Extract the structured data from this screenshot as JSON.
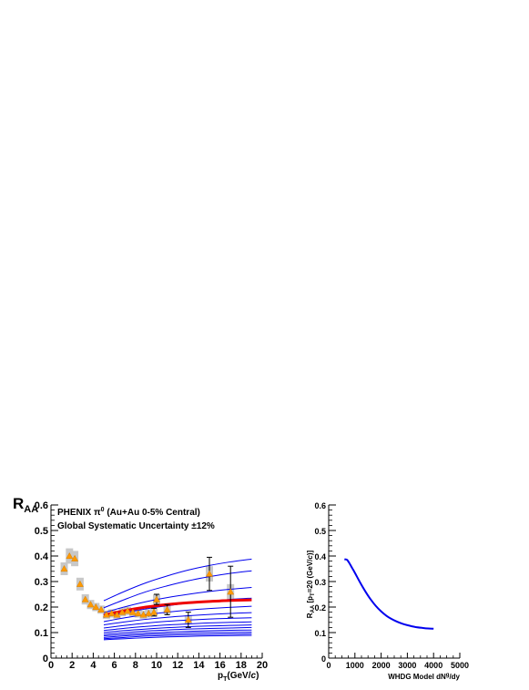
{
  "chart_data": [
    {
      "type": "scatter",
      "title": "",
      "ylabel_main": "R",
      "ylabel_sub": "AA",
      "xlabel_main": "p",
      "xlabel_sub": "T",
      "xlabel_tail": "(GeV/",
      "xlabel_c": "c",
      "xlabel_close": ")",
      "annotation_line1_a": "PHENIX π",
      "annotation_line1_sup": "0",
      "annotation_line1_b": " (Au+Au 0-5% Central)",
      "annotation_line2": "Global Systematic Uncertainty ±12%",
      "xlim": [
        0,
        20
      ],
      "ylim": [
        0,
        0.6
      ],
      "xticks": [
        0,
        2,
        4,
        6,
        8,
        10,
        12,
        14,
        16,
        18,
        20
      ],
      "yticks": [
        0,
        0.1,
        0.2,
        0.3,
        0.4,
        0.5,
        0.6
      ],
      "xtick_labels": [
        "0",
        "2",
        "4",
        "6",
        "8",
        "10",
        "12",
        "14",
        "16",
        "18",
        "20"
      ],
      "ytick_labels": [
        "0",
        "0.1",
        "0.2",
        "0.3",
        "0.4",
        "0.5",
        "0.6"
      ],
      "points": [
        {
          "x": 1.25,
          "y": 0.35,
          "stat": 0.01,
          "sys": 0.025
        },
        {
          "x": 1.75,
          "y": 0.4,
          "stat": 0.01,
          "sys": 0.03
        },
        {
          "x": 2.25,
          "y": 0.39,
          "stat": 0.01,
          "sys": 0.03
        },
        {
          "x": 2.75,
          "y": 0.29,
          "stat": 0.01,
          "sys": 0.025
        },
        {
          "x": 3.25,
          "y": 0.23,
          "stat": 0.008,
          "sys": 0.02
        },
        {
          "x": 3.75,
          "y": 0.21,
          "stat": 0.008,
          "sys": 0.018
        },
        {
          "x": 4.25,
          "y": 0.2,
          "stat": 0.008,
          "sys": 0.016
        },
        {
          "x": 4.75,
          "y": 0.19,
          "stat": 0.008,
          "sys": 0.016
        },
        {
          "x": 5.25,
          "y": 0.17,
          "stat": 0.008,
          "sys": 0.016
        },
        {
          "x": 5.75,
          "y": 0.175,
          "stat": 0.008,
          "sys": 0.016
        },
        {
          "x": 6.25,
          "y": 0.17,
          "stat": 0.008,
          "sys": 0.016
        },
        {
          "x": 6.75,
          "y": 0.18,
          "stat": 0.008,
          "sys": 0.016
        },
        {
          "x": 7.25,
          "y": 0.185,
          "stat": 0.008,
          "sys": 0.016
        },
        {
          "x": 7.75,
          "y": 0.18,
          "stat": 0.008,
          "sys": 0.016
        },
        {
          "x": 8.25,
          "y": 0.175,
          "stat": 0.01,
          "sys": 0.016
        },
        {
          "x": 8.75,
          "y": 0.17,
          "stat": 0.01,
          "sys": 0.016
        },
        {
          "x": 9.25,
          "y": 0.175,
          "stat": 0.012,
          "sys": 0.016
        },
        {
          "x": 9.75,
          "y": 0.18,
          "stat": 0.015,
          "sys": 0.018
        },
        {
          "x": 10.0,
          "y": 0.23,
          "stat": 0.02,
          "sys": 0.02
        },
        {
          "x": 11.0,
          "y": 0.19,
          "stat": 0.02,
          "sys": 0.018
        },
        {
          "x": 13.0,
          "y": 0.15,
          "stat": 0.03,
          "sys": 0.018
        },
        {
          "x": 15.0,
          "y": 0.33,
          "stat": 0.065,
          "sys": 0.03
        },
        {
          "x": 17.0,
          "y": 0.26,
          "stat": 0.1,
          "sys": 0.03
        }
      ],
      "model_x": [
        5,
        7,
        9,
        11,
        13,
        15,
        17,
        19
      ],
      "model_curves": [
        [
          0.225,
          0.262,
          0.295,
          0.322,
          0.345,
          0.363,
          0.377,
          0.388
        ],
        [
          0.197,
          0.23,
          0.26,
          0.283,
          0.303,
          0.319,
          0.332,
          0.342
        ],
        [
          0.178,
          0.201,
          0.221,
          0.237,
          0.25,
          0.261,
          0.27,
          0.277
        ],
        [
          0.16,
          0.178,
          0.193,
          0.205,
          0.215,
          0.223,
          0.23,
          0.235
        ],
        [
          0.143,
          0.158,
          0.17,
          0.18,
          0.188,
          0.194,
          0.199,
          0.203
        ],
        [
          0.13,
          0.142,
          0.152,
          0.16,
          0.166,
          0.171,
          0.175,
          0.178
        ],
        [
          0.118,
          0.128,
          0.137,
          0.144,
          0.149,
          0.153,
          0.156,
          0.158
        ],
        [
          0.108,
          0.117,
          0.124,
          0.13,
          0.134,
          0.138,
          0.14,
          0.142
        ],
        [
          0.1,
          0.108,
          0.114,
          0.119,
          0.123,
          0.126,
          0.128,
          0.13
        ],
        [
          0.093,
          0.1,
          0.106,
          0.11,
          0.114,
          0.116,
          0.118,
          0.12
        ],
        [
          0.087,
          0.093,
          0.098,
          0.102,
          0.105,
          0.107,
          0.109,
          0.11
        ],
        [
          0.081,
          0.087,
          0.092,
          0.095,
          0.098,
          0.1,
          0.101,
          0.102
        ],
        [
          0.076,
          0.081,
          0.086,
          0.089,
          0.091,
          0.093,
          0.094,
          0.095
        ],
        [
          0.072,
          0.076,
          0.08,
          0.083,
          0.085,
          0.087,
          0.088,
          0.089
        ]
      ],
      "best_fit_curve": [
        0.168,
        0.186,
        0.2,
        0.21,
        0.217,
        0.222,
        0.226,
        0.228
      ],
      "colors": {
        "model": "#0000ee",
        "best_fit": "#ee0000",
        "points": "#ff9900",
        "sys_box": "#c8c8c8",
        "axis": "#000000"
      }
    },
    {
      "type": "line",
      "title": "",
      "ylabel_a": "R",
      "ylabel_aa": "AA",
      "ylabel_b": " [p",
      "ylabel_t": "T",
      "ylabel_c": "=20 (GeV/",
      "ylabel_cc": "c",
      "ylabel_d": ")]",
      "xlabel_a": "WHDG Model dN",
      "xlabel_sup": "g",
      "xlabel_b": "/dy",
      "xlim": [
        0,
        5000
      ],
      "ylim": [
        0,
        0.6
      ],
      "xticks": [
        0,
        1000,
        2000,
        3000,
        4000,
        5000
      ],
      "yticks": [
        0,
        0.1,
        0.2,
        0.3,
        0.4,
        0.5,
        0.6
      ],
      "xtick_labels": [
        "0",
        "1000",
        "2000",
        "3000",
        "4000",
        "5000"
      ],
      "ytick_labels": [
        "0",
        "0.1",
        "0.2",
        "0.3",
        "0.4",
        "0.5",
        "0.6"
      ],
      "x": [
        600,
        700,
        800,
        900,
        1000,
        1200,
        1400,
        1600,
        1800,
        2000,
        2200,
        2400,
        2600,
        2800,
        3000,
        3300,
        3600,
        3800,
        4000
      ],
      "y": [
        0.387,
        0.385,
        0.37,
        0.352,
        0.334,
        0.296,
        0.261,
        0.23,
        0.204,
        0.183,
        0.166,
        0.153,
        0.143,
        0.135,
        0.129,
        0.122,
        0.118,
        0.116,
        0.115
      ],
      "colors": {
        "line": "#0000ee",
        "axis": "#000000"
      }
    }
  ]
}
